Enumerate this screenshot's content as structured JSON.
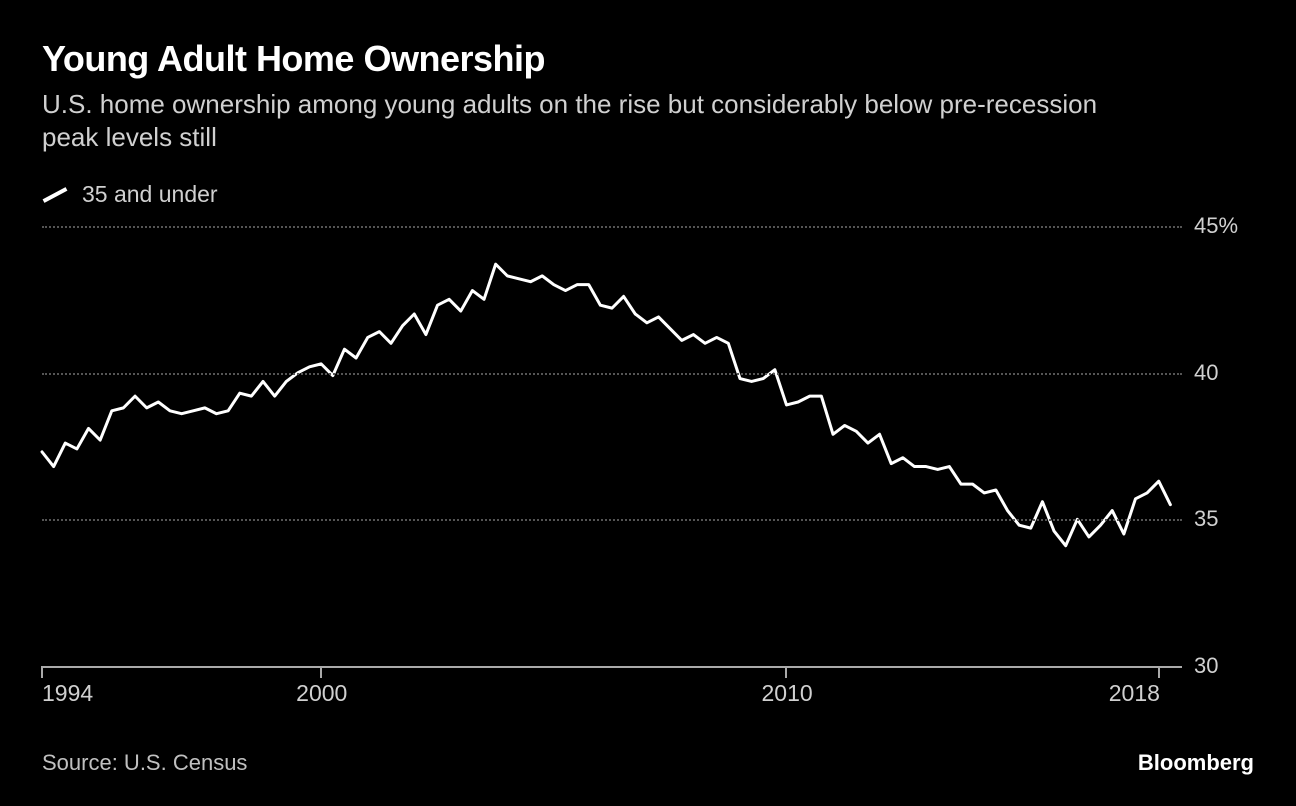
{
  "title": "Young Adult Home Ownership",
  "subtitle": "U.S. home ownership among young adults on the rise but considerably below pre-recession peak levels still",
  "legend": {
    "label": "35 and under",
    "swatch_color": "#ffffff"
  },
  "chart": {
    "type": "line",
    "background_color": "#000000",
    "line_color": "#ffffff",
    "line_width": 3,
    "grid_color": "#555555",
    "axis_color": "#aaaaaa",
    "text_color": "#d0d0d0",
    "label_fontsize": 22,
    "title_fontsize": 36,
    "subtitle_fontsize": 26,
    "xlim": [
      1994,
      2018.5
    ],
    "ylim": [
      30,
      45
    ],
    "y_ticks": [
      30,
      35,
      40,
      45
    ],
    "y_tick_labels": [
      "30",
      "35",
      "40",
      "45%"
    ],
    "x_ticks": [
      1994,
      2000,
      2010,
      2018
    ],
    "x_tick_labels": [
      "1994",
      "2000",
      "2010",
      "2018"
    ],
    "series": [
      {
        "name": "35 and under",
        "x": [
          1994.0,
          1994.25,
          1994.5,
          1994.75,
          1995.0,
          1995.25,
          1995.5,
          1995.75,
          1996.0,
          1996.25,
          1996.5,
          1996.75,
          1997.0,
          1997.25,
          1997.5,
          1997.75,
          1998.0,
          1998.25,
          1998.5,
          1998.75,
          1999.0,
          1999.25,
          1999.5,
          1999.75,
          2000.0,
          2000.25,
          2000.5,
          2000.75,
          2001.0,
          2001.25,
          2001.5,
          2001.75,
          2002.0,
          2002.25,
          2002.5,
          2002.75,
          2003.0,
          2003.25,
          2003.5,
          2003.75,
          2004.0,
          2004.25,
          2004.5,
          2004.75,
          2005.0,
          2005.25,
          2005.5,
          2005.75,
          2006.0,
          2006.25,
          2006.5,
          2006.75,
          2007.0,
          2007.25,
          2007.5,
          2007.75,
          2008.0,
          2008.25,
          2008.5,
          2008.75,
          2009.0,
          2009.25,
          2009.5,
          2009.75,
          2010.0,
          2010.25,
          2010.5,
          2010.75,
          2011.0,
          2011.25,
          2011.5,
          2011.75,
          2012.0,
          2012.25,
          2012.5,
          2012.75,
          2013.0,
          2013.25,
          2013.5,
          2013.75,
          2014.0,
          2014.25,
          2014.5,
          2014.75,
          2015.0,
          2015.25,
          2015.5,
          2015.75,
          2016.0,
          2016.25,
          2016.5,
          2016.75,
          2017.0,
          2017.25,
          2017.5,
          2017.75,
          2018.0,
          2018.25
        ],
        "y": [
          37.3,
          36.8,
          37.6,
          37.4,
          38.1,
          37.7,
          38.7,
          38.8,
          39.2,
          38.8,
          39.0,
          38.7,
          38.6,
          38.7,
          38.8,
          38.6,
          38.7,
          39.3,
          39.2,
          39.7,
          39.2,
          39.7,
          40.0,
          40.2,
          40.3,
          39.9,
          40.8,
          40.5,
          41.2,
          41.4,
          41.0,
          41.6,
          42.0,
          41.3,
          42.3,
          42.5,
          42.1,
          42.8,
          42.5,
          43.7,
          43.3,
          43.2,
          43.1,
          43.3,
          43.0,
          42.8,
          43.0,
          43.0,
          42.3,
          42.2,
          42.6,
          42.0,
          41.7,
          41.9,
          41.5,
          41.1,
          41.3,
          41.0,
          41.2,
          41.0,
          39.8,
          39.7,
          39.8,
          40.1,
          38.9,
          39.0,
          39.2,
          39.2,
          37.9,
          38.2,
          38.0,
          37.6,
          37.9,
          36.9,
          37.1,
          36.8,
          36.8,
          36.7,
          36.8,
          36.2,
          36.2,
          35.9,
          36.0,
          35.3,
          34.8,
          34.7,
          35.6,
          34.6,
          34.1,
          35.0,
          34.4,
          34.8,
          35.3,
          34.5,
          35.7,
          35.9,
          36.3,
          35.5
        ]
      }
    ]
  },
  "source": "Source: U.S. Census",
  "brand": "Bloomberg"
}
